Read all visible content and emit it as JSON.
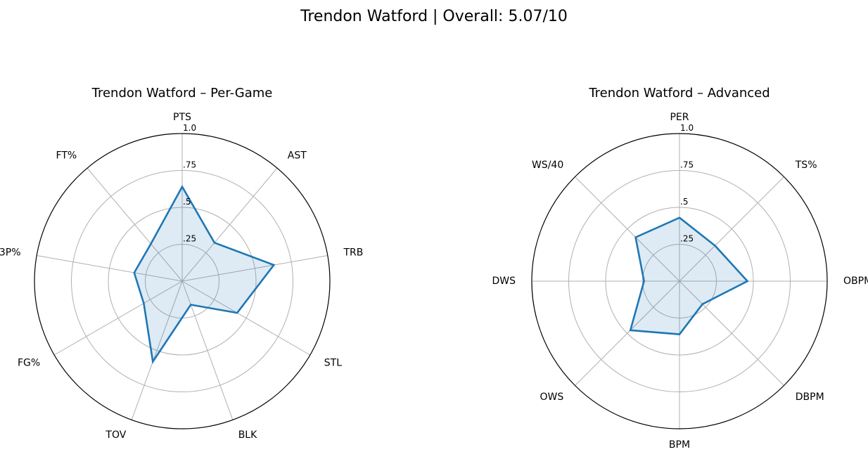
{
  "figure": {
    "suptitle": "Trendon Watford | Overall: 5.07/10"
  },
  "chart_data": [
    {
      "type": "radar",
      "title": "Trendon Watford – Per-Game",
      "categories": [
        "PTS",
        "AST",
        "TRB",
        "STL",
        "BLK",
        "TOV",
        "FG%",
        "3P%",
        "FT%"
      ],
      "values": [
        0.64,
        0.34,
        0.63,
        0.43,
        0.17,
        0.58,
        0.3,
        0.33,
        0.33
      ],
      "rticks": [
        0.25,
        0.5,
        0.75,
        1.0
      ],
      "rtick_labels": [
        ".25",
        ".5",
        ".75",
        "1.0"
      ],
      "rlim": [
        0,
        1
      ],
      "grid": true,
      "colors": {
        "line": "#1f77b4",
        "fill": "#1f77b4",
        "grid": "#b0b0b0",
        "frame": "#000000"
      }
    },
    {
      "type": "radar",
      "title": "Trendon Watford – Advanced",
      "categories": [
        "PER",
        "TS%",
        "OBPM",
        "DBPM",
        "BPM",
        "OWS",
        "DWS",
        "WS/40"
      ],
      "values": [
        0.43,
        0.34,
        0.46,
        0.22,
        0.36,
        0.47,
        0.24,
        0.42
      ],
      "rticks": [
        0.25,
        0.5,
        0.75,
        1.0
      ],
      "rtick_labels": [
        ".25",
        ".5",
        ".75",
        "1.0"
      ],
      "rlim": [
        0,
        1
      ],
      "grid": true,
      "colors": {
        "line": "#1f77b4",
        "fill": "#1f77b4",
        "grid": "#b0b0b0",
        "frame": "#000000"
      }
    }
  ]
}
